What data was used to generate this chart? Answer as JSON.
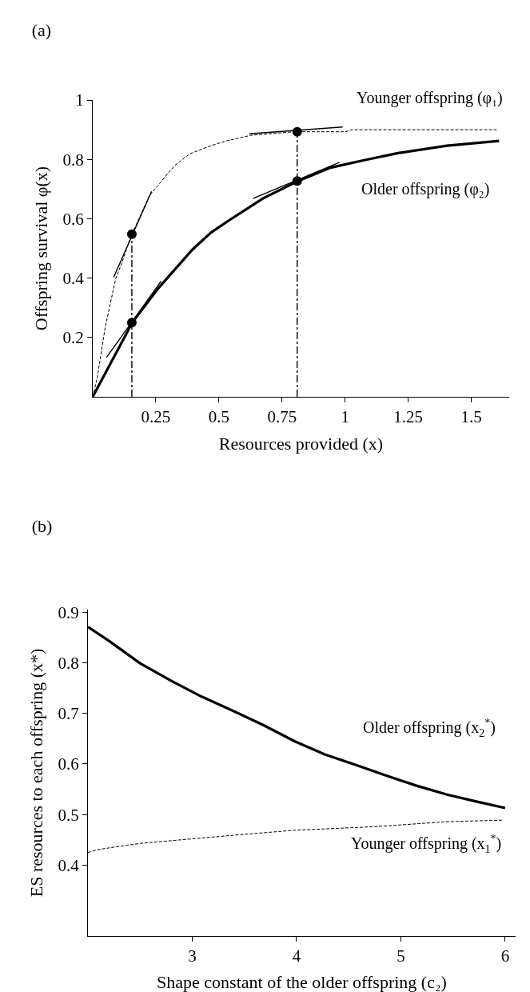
{
  "chart_data": [
    {
      "type": "line",
      "title": "(a)",
      "xlabel": "Resources provided (x)",
      "ylabel": "Offspring survival φ(x)",
      "xlim": [
        0,
        1.65
      ],
      "ylim": [
        0,
        1
      ],
      "xticks": [
        0.25,
        0.5,
        0.75,
        1,
        1.25,
        1.5
      ],
      "yticks": [
        0.2,
        0.4,
        0.6,
        0.8,
        1
      ],
      "grid": false,
      "marker": "none",
      "series": [
        {
          "name": "Younger offspring (φ₁)",
          "color": "#000000",
          "line_style": "dashed",
          "x": [
            0,
            0.018,
            0.049,
            0.091,
            0.115,
            0.152,
            0.225,
            0.322,
            0.383,
            0.468,
            0.529,
            0.626,
            0.796,
            1.0,
            1.027,
            1.6
          ],
          "values": [
            0,
            0.065,
            0.232,
            0.398,
            0.45,
            0.543,
            0.678,
            0.777,
            0.818,
            0.846,
            0.862,
            0.881,
            0.893,
            0.893,
            0.9,
            0.9
          ]
        },
        {
          "name": "Older offspring (φ₂)",
          "color": "#000000",
          "line_style": "solid",
          "x": [
            0,
            0.158,
            0.261,
            0.395,
            0.468,
            0.541,
            0.674,
            0.808,
            0.942,
            1.075,
            1.209,
            1.403,
            1.61
          ],
          "values": [
            0,
            0.252,
            0.367,
            0.496,
            0.553,
            0.595,
            0.668,
            0.725,
            0.772,
            0.797,
            0.821,
            0.846,
            0.862
          ]
        },
        {
          "color": "#000000",
          "line_style": "solid",
          "x": [
            0.083,
            0.233
          ],
          "values": [
            0.403,
            0.692
          ]
        },
        {
          "color": "#000000",
          "line_style": "solid",
          "x": [
            0.055,
            0.271
          ],
          "values": [
            0.133,
            0.39
          ]
        },
        {
          "color": "#000000",
          "line_style": "solid",
          "x": [
            0.62,
            0.99
          ],
          "values": [
            0.886,
            0.909
          ]
        },
        {
          "color": "#000000",
          "line_style": "solid",
          "x": [
            0.635,
            0.978
          ],
          "values": [
            0.668,
            0.79
          ]
        },
        {
          "color": "#000000",
          "line_style": "dashdot",
          "x": [
            0.155,
            0.155
          ],
          "values": [
            0,
            0.548
          ]
        },
        {
          "color": "#000000",
          "line_style": "dashdot",
          "x": [
            0.81,
            0.81
          ],
          "values": [
            0,
            0.893
          ]
        },
        {
          "type": "scatter",
          "marker": "circle",
          "color": "#000000",
          "x": [
            0.155,
            0.155,
            0.81,
            0.81
          ],
          "values": [
            0.548,
            0.25,
            0.893,
            0.727
          ]
        }
      ]
    },
    {
      "type": "line",
      "title": "(b)",
      "xlabel": "Shape constant of the older offspring (c₂)",
      "ylabel": "ES resources to each offspring (x*)",
      "xlim": [
        2,
        6.1
      ],
      "ylim": [
        0.26,
        0.905
      ],
      "xticks": [
        3,
        4,
        5,
        6
      ],
      "yticks": [
        0.4,
        0.5,
        0.6,
        0.7,
        0.8,
        0.9
      ],
      "grid": false,
      "marker": "none",
      "series": [
        {
          "name": "Older offspring (x$_{2}$$^{*}$)",
          "color": "#000000",
          "line_style": "solid",
          "x": [
            2,
            2.21,
            2.5,
            2.8,
            3.09,
            3.39,
            3.68,
            3.98,
            4.27,
            4.57,
            4.86,
            5.15,
            5.45,
            5.74,
            6.0
          ],
          "values": [
            0.871,
            0.842,
            0.799,
            0.764,
            0.733,
            0.705,
            0.677,
            0.645,
            0.619,
            0.598,
            0.577,
            0.557,
            0.539,
            0.525,
            0.513
          ]
        },
        {
          "name": "Younger offspring (x$_{1}$$^{*}$)",
          "color": "#000000",
          "line_style": "dashed",
          "x": [
            2,
            2.1,
            2.5,
            3.0,
            3.39,
            3.98,
            4.75,
            5.45,
            5.98
          ],
          "values": [
            0.425,
            0.431,
            0.443,
            0.452,
            0.459,
            0.469,
            0.476,
            0.486,
            0.489
          ]
        }
      ]
    }
  ]
}
